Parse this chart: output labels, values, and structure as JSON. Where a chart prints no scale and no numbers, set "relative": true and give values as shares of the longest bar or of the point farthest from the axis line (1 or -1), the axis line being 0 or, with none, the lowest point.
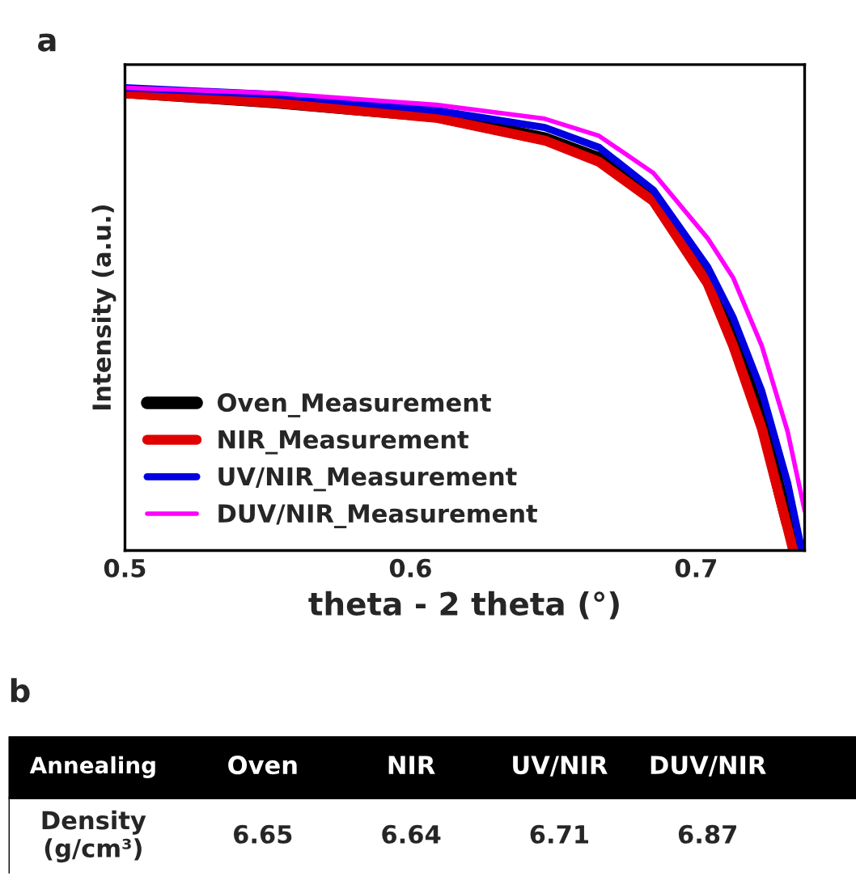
{
  "chart_data": [
    {
      "type": "line",
      "title": "a",
      "xlabel": "theta - 2 theta (°)",
      "ylabel": "Intensity (a.u.)",
      "relative": true,
      "xlim": [
        0.5,
        0.738
      ],
      "xticks": [
        0.5,
        0.6,
        0.7
      ],
      "legend": "bottom left",
      "line_style": "solid",
      "marker": "none",
      "grid": false,
      "series": [
        {
          "name": "Oven_Measurement",
          "color": "#000000",
          "x": [
            0.5,
            0.553,
            0.609,
            0.647,
            0.666,
            0.685,
            0.704,
            0.713,
            0.723,
            0.732,
            0.736
          ],
          "values": [
            0.991,
            0.969,
            0.939,
            0.89,
            0.847,
            0.761,
            0.589,
            0.454,
            0.282,
            0.061,
            0
          ]
        },
        {
          "name": "NIR_Measurement",
          "color": "#e00000",
          "x": [
            0.5,
            0.553,
            0.609,
            0.647,
            0.666,
            0.685,
            0.704,
            0.713,
            0.723,
            0.732,
            0.734
          ],
          "values": [
            0.988,
            0.967,
            0.935,
            0.886,
            0.84,
            0.755,
            0.577,
            0.442,
            0.264,
            0.049,
            0
          ]
        },
        {
          "name": "UV/NIR_Measurement",
          "color": "#0000e0",
          "x": [
            0.5,
            0.553,
            0.609,
            0.647,
            0.666,
            0.685,
            0.704,
            0.713,
            0.723,
            0.732,
            0.737
          ],
          "values": [
            1,
            0.985,
            0.951,
            0.914,
            0.871,
            0.779,
            0.613,
            0.503,
            0.344,
            0.147,
            0
          ]
        },
        {
          "name": "DUV/NIR_Measurement",
          "color": "#ff00ff",
          "x": [
            0.5,
            0.553,
            0.609,
            0.647,
            0.666,
            0.685,
            0.704,
            0.713,
            0.723,
            0.732,
            0.738
          ],
          "values": [
            1,
            0.988,
            0.963,
            0.933,
            0.896,
            0.816,
            0.675,
            0.589,
            0.442,
            0.258,
            0.086
          ]
        }
      ]
    },
    {
      "type": "other",
      "title": "b",
      "xlabel": "Annealing",
      "ylabel": "Density\n(g/cm³)",
      "categories": [
        "Oven",
        "NIR",
        "UV/NIR",
        "DUV/NIR"
      ],
      "values": [
        6.65,
        6.64,
        6.71,
        6.87
      ],
      "data_labels": true
    }
  ]
}
